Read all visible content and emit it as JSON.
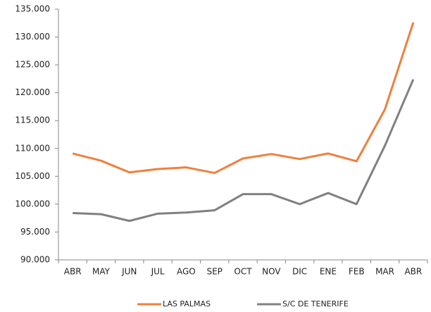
{
  "chart_data": {
    "type": "line",
    "categories": [
      "ABR",
      "MAY",
      "JUN",
      "JUL",
      "AGO",
      "SEP",
      "OCT",
      "NOV",
      "DIC",
      "ENE",
      "FEB",
      "MAR",
      "ABR"
    ],
    "series": [
      {
        "name": "LAS PALMAS",
        "color": "#f0803c",
        "values": [
          109100,
          107800,
          105700,
          106300,
          106600,
          105600,
          108200,
          109000,
          108100,
          109100,
          107700,
          117000,
          132600
        ]
      },
      {
        "name": "S/C DE TENERIFE",
        "color": "#808080",
        "values": [
          98400,
          98200,
          97000,
          98300,
          98500,
          98900,
          101800,
          101800,
          100000,
          102000,
          100000,
          110500,
          122400
        ]
      }
    ],
    "ylim": [
      90000,
      135000
    ],
    "yticks": [
      {
        "value": 90000,
        "label": "90.000"
      },
      {
        "value": 95000,
        "label": "95.000"
      },
      {
        "value": 100000,
        "label": "100.000"
      },
      {
        "value": 105000,
        "label": "105.000"
      },
      {
        "value": 110000,
        "label": "110.000"
      },
      {
        "value": 115000,
        "label": "115.000"
      },
      {
        "value": 120000,
        "label": "120.000"
      },
      {
        "value": 125000,
        "label": "125.000"
      },
      {
        "value": 130000,
        "label": "130.000"
      },
      {
        "value": 135000,
        "label": "135.000"
      }
    ],
    "legend": "bottom"
  }
}
